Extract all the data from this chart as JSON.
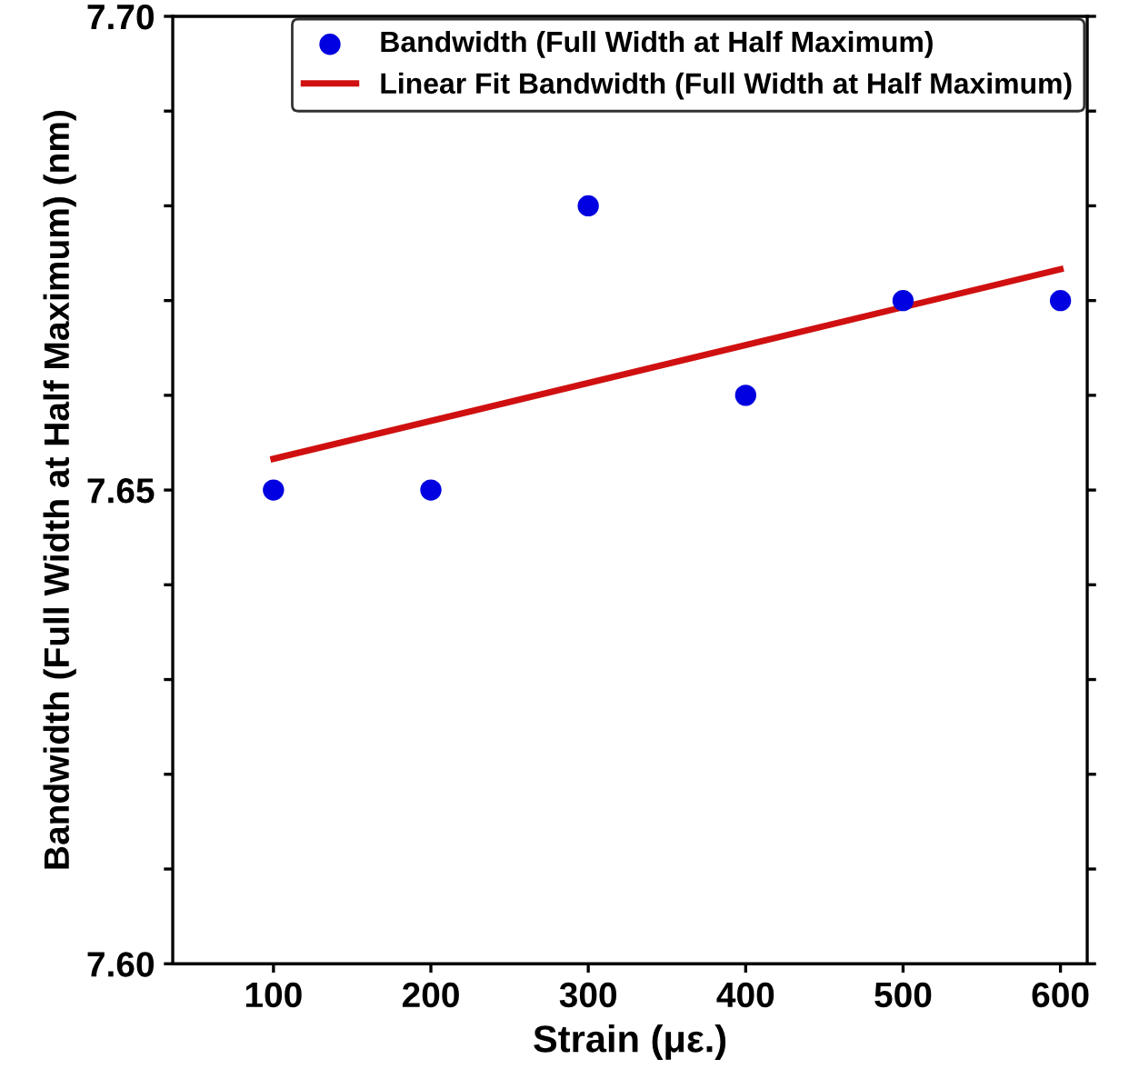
{
  "chart_data": {
    "type": "scatter",
    "xlabel": "Strain (με.)",
    "ylabel": "Bandwidth (Full Width at Half Maximum) (nm)",
    "series": [
      {
        "name": "Bandwidth (Full Width at Half Maximum)",
        "color": "#0000e0",
        "marker": "circle",
        "x": [
          100,
          200,
          300,
          400,
          500,
          600
        ],
        "values": [
          7.65,
          7.65,
          7.68,
          7.66,
          7.67,
          7.67
        ]
      },
      {
        "name": "Linear Fit Bandwidth (Full Width at Half Maximum)",
        "type": "line",
        "color": "#d01010",
        "marker": "none",
        "line_style": "solid",
        "x": [
          100,
          600
        ],
        "values": [
          7.6533,
          7.6733
        ]
      }
    ],
    "xlim": [
      36,
      617
    ],
    "xticks": [
      100,
      200,
      300,
      400,
      500,
      600
    ],
    "ylim": [
      7.6,
      7.7
    ],
    "yticks": [
      {
        "value": 7.6,
        "label": "7.60"
      },
      {
        "value": 7.61,
        "label": null
      },
      {
        "value": 7.62,
        "label": null
      },
      {
        "value": 7.63,
        "label": null
      },
      {
        "value": 7.64,
        "label": null
      },
      {
        "value": 7.65,
        "label": "7.65"
      },
      {
        "value": 7.66,
        "label": null
      },
      {
        "value": 7.67,
        "label": null
      },
      {
        "value": 7.68,
        "label": null
      },
      {
        "value": 7.69,
        "label": null
      },
      {
        "value": 7.7,
        "label": "7.70"
      }
    ],
    "grid": false,
    "legend": "top right"
  }
}
